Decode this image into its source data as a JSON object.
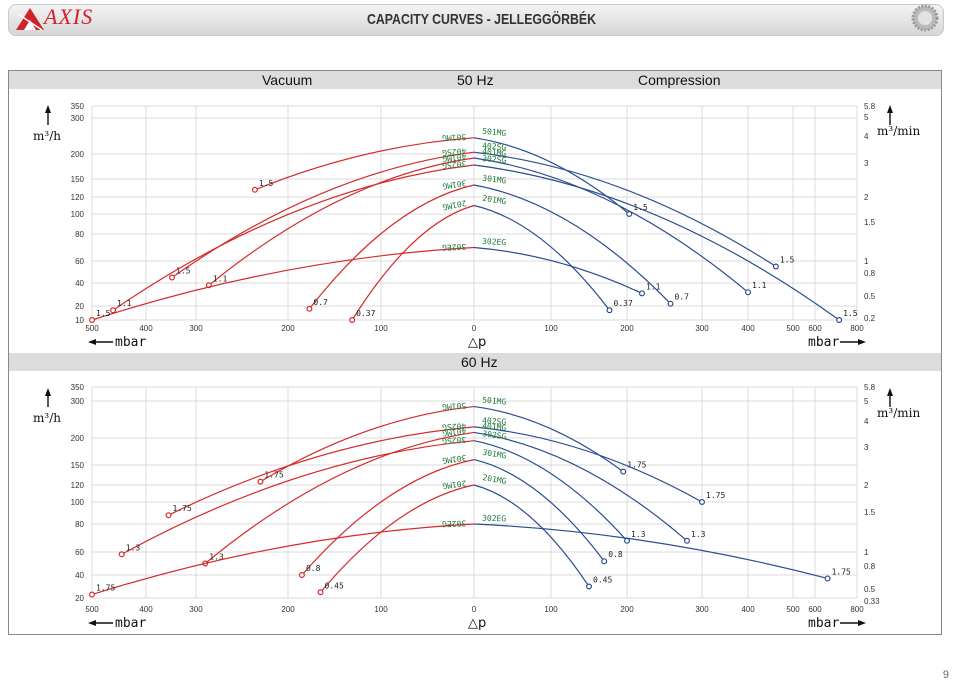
{
  "header": {
    "brand": "AXIS",
    "title": "CAPACITY CURVES - JELLEGGÖRBÉK"
  },
  "page_number": "9",
  "colors": {
    "vacuum": "#d42a2a",
    "compression": "#2a4d8f",
    "label_green": "#1f7a3a",
    "grid": "#cfcfcf"
  },
  "top_band": {
    "left": "Vacuum",
    "center": "50 Hz",
    "right": "Compression"
  },
  "mid_band": {
    "center": "60 Hz"
  },
  "chart_data": [
    {
      "type": "line",
      "title": "50 Hz",
      "left_axis_label": "m³/h",
      "right_axis_label": "m³/min",
      "x_left_label": "mbar",
      "x_center_label": "△p",
      "x_right_label": "mbar",
      "x_ticks": [
        "500",
        "400",
        "300",
        "200",
        "100",
        "0",
        "100",
        "200",
        "300",
        "400",
        "500",
        "600",
        "800"
      ],
      "y_left_ticks": [
        "350",
        "300",
        "200",
        "150",
        "120",
        "100",
        "80",
        "60",
        "40",
        "20",
        "10"
      ],
      "y_right_ticks": [
        "5.8",
        "5",
        "4",
        "3",
        "2",
        "1.5",
        "1",
        "0.8",
        "0.5",
        "0.2"
      ],
      "series": [
        {
          "name": "501MG",
          "side": "vacuum",
          "kw": "1.5",
          "points": [
            [
              0,
              245
            ],
            [
              -236,
              132
            ]
          ]
        },
        {
          "name": "402SG",
          "side": "vacuum",
          "kw": "1.5",
          "points": [
            [
              0,
              205
            ],
            [
              -348,
              45
            ]
          ]
        },
        {
          "name": "401MG",
          "side": "vacuum",
          "kw": "1.1",
          "points": [
            [
              0,
              192
            ],
            [
              -286,
              38
            ]
          ]
        },
        {
          "name": "302SG",
          "side": "vacuum",
          "kw": "1.1",
          "points": [
            [
              0,
              178
            ],
            [
              -461,
              17
            ]
          ]
        },
        {
          "name": "301MG",
          "side": "vacuum",
          "kw": "0.7",
          "points": [
            [
              0,
              140
            ],
            [
              -177,
              18
            ]
          ]
        },
        {
          "name": "201MG",
          "side": "vacuum",
          "kw": "0.37",
          "points": [
            [
              0,
              110
            ],
            [
              -131,
              10
            ]
          ]
        },
        {
          "name": "302EG",
          "side": "vacuum",
          "kw": "1.5",
          "points": [
            [
              0,
              70
            ],
            [
              -555,
              5
            ]
          ]
        },
        {
          "name": "501MG",
          "side": "compression",
          "kw": "1.5",
          "points": [
            [
              0,
              245
            ],
            [
              203,
              100
            ]
          ]
        },
        {
          "name": "402SG",
          "side": "compression",
          "kw": "1.5",
          "points": [
            [
              0,
              205
            ],
            [
              462,
              55
            ]
          ]
        },
        {
          "name": "401MG",
          "side": "compression",
          "kw": "1.1",
          "points": [
            [
              0,
              192
            ],
            [
              400,
              32
            ]
          ]
        },
        {
          "name": "302SG",
          "side": "compression",
          "kw": "1.5",
          "points": [
            [
              0,
              178
            ],
            [
              715,
              10
            ]
          ]
        },
        {
          "name": "301MG",
          "side": "compression",
          "kw": "0.7",
          "points": [
            [
              0,
              140
            ],
            [
              258,
              22
            ]
          ]
        },
        {
          "name": "201MG",
          "side": "compression",
          "kw": "0.37",
          "points": [
            [
              0,
              110
            ],
            [
              177,
              17
            ]
          ]
        },
        {
          "name": "302EG",
          "side": "compression",
          "kw": "1.1",
          "points": [
            [
              0,
              70
            ],
            [
              220,
              31
            ]
          ]
        }
      ]
    },
    {
      "type": "line",
      "title": "60 Hz",
      "left_axis_label": "m³/h",
      "right_axis_label": "m³/min",
      "x_left_label": "mbar",
      "x_center_label": "△p",
      "x_right_label": "mbar",
      "x_ticks": [
        "500",
        "400",
        "300",
        "200",
        "100",
        "0",
        "100",
        "200",
        "300",
        "400",
        "500",
        "600",
        "800"
      ],
      "y_left_ticks": [
        "350",
        "300",
        "200",
        "150",
        "120",
        "100",
        "80",
        "60",
        "40",
        "20"
      ],
      "y_right_ticks": [
        "5.8",
        "5",
        "4",
        "3",
        "2",
        "1.5",
        "1",
        "0.8",
        "0.5",
        "0.33"
      ],
      "series": [
        {
          "name": "501MG",
          "side": "vacuum",
          "kw": "1.75",
          "points": [
            [
              0,
              285
            ],
            [
              -230,
              125
            ]
          ]
        },
        {
          "name": "402SG",
          "side": "vacuum",
          "kw": "1.75",
          "points": [
            [
              0,
              230
            ],
            [
              -355,
              88
            ]
          ]
        },
        {
          "name": "401MG",
          "side": "vacuum",
          "kw": "1.3",
          "points": [
            [
              0,
              215
            ],
            [
              -290,
              50
            ]
          ]
        },
        {
          "name": "302SG",
          "side": "vacuum",
          "kw": "1.3",
          "points": [
            [
              0,
              195
            ],
            [
              -445,
              58
            ]
          ]
        },
        {
          "name": "301MG",
          "side": "vacuum",
          "kw": "0.8",
          "points": [
            [
              0,
              160
            ],
            [
              -185,
              40
            ]
          ]
        },
        {
          "name": "201MG",
          "side": "vacuum",
          "kw": "0.45",
          "points": [
            [
              0,
              120
            ],
            [
              -165,
              25
            ]
          ]
        },
        {
          "name": "302EG",
          "side": "vacuum",
          "kw": "1.75",
          "points": [
            [
              0,
              80
            ],
            [
              -555,
              23
            ]
          ]
        },
        {
          "name": "501MG",
          "side": "compression",
          "kw": "1.75",
          "points": [
            [
              0,
              285
            ],
            [
              195,
              140
            ]
          ]
        },
        {
          "name": "402SG",
          "side": "compression",
          "kw": "1.75",
          "points": [
            [
              0,
              230
            ],
            [
              300,
              100
            ]
          ]
        },
        {
          "name": "401MG",
          "side": "compression",
          "kw": "1.3",
          "points": [
            [
              0,
              215
            ],
            [
              280,
              68
            ]
          ]
        },
        {
          "name": "302SG",
          "side": "compression",
          "kw": "1.3",
          "points": [
            [
              0,
              195
            ],
            [
              200,
              68
            ]
          ]
        },
        {
          "name": "301MG",
          "side": "compression",
          "kw": "0.8",
          "points": [
            [
              0,
              160
            ],
            [
              170,
              52
            ]
          ]
        },
        {
          "name": "201MG",
          "side": "compression",
          "kw": "0.45",
          "points": [
            [
              0,
              120
            ],
            [
              150,
              30
            ]
          ]
        },
        {
          "name": "302EG",
          "side": "compression",
          "kw": "1.75",
          "points": [
            [
              0,
              80
            ],
            [
              660,
              37
            ]
          ]
        }
      ]
    }
  ]
}
